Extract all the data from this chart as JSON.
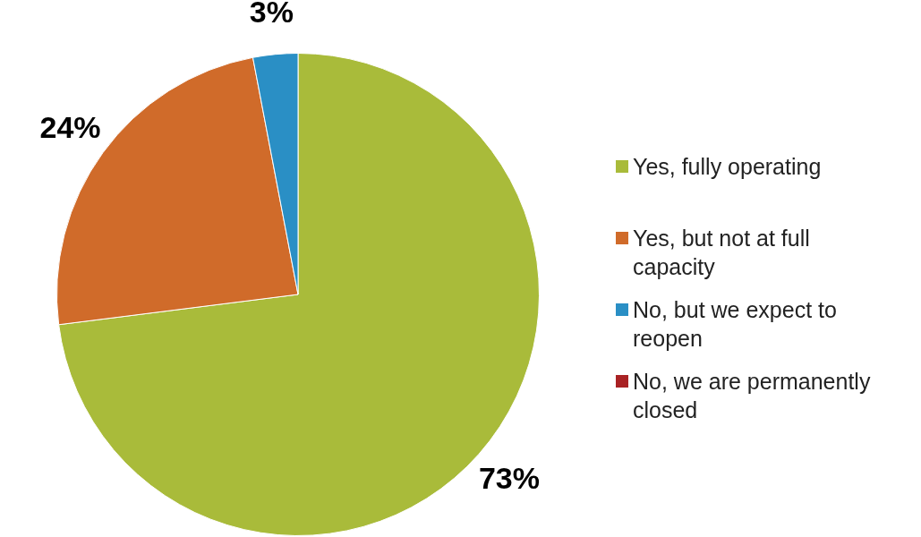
{
  "chart_data": {
    "type": "pie",
    "categories": [
      "Yes, fully operating",
      "Yes, but not at full capacity",
      "No, but we expect to reopen",
      "No, we are permanently closed"
    ],
    "values": [
      73,
      24,
      3,
      0
    ],
    "colors": [
      "#a9bb3a",
      "#d06b2a",
      "#2a8fc5",
      "#a92224"
    ],
    "value_labels": [
      "73%",
      "24%",
      "3%",
      null
    ],
    "legend": "right"
  }
}
